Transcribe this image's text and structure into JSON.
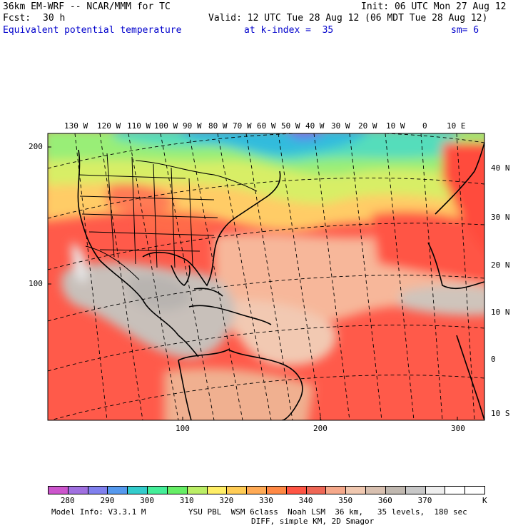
{
  "header": {
    "title": "36km EM-WRF -- NCAR/MMM for TC",
    "init": "Init: 06 UTC Mon 27 Aug 12",
    "fcst_label": "Fcst:",
    "fcst_value": "30 h",
    "valid": "Valid: 12 UTC Tue 28 Aug 12 (06 MDT Tue 28 Aug 12)",
    "field": "Equivalent potential temperature",
    "level": "at k-index =  35",
    "smooth": "sm= 6"
  },
  "map": {
    "lon_labels": [
      "130 W",
      "120 W",
      "110 W",
      "100 W",
      "90 W",
      "80 W",
      "70 W",
      "60 W",
      "50 W",
      "40 W",
      "30 W",
      "20 W",
      "10 W",
      "0",
      "10 E"
    ],
    "lat_labels": [
      "40 N",
      "30 N",
      "20 N",
      "10 N",
      "0",
      "10 S"
    ],
    "grid_y_labels": [
      "200",
      "100"
    ],
    "grid_x_labels": [
      "100",
      "200",
      "300"
    ]
  },
  "colorbar": {
    "colors": [
      "#cc55cc",
      "#a070e0",
      "#8080ee",
      "#5599ee",
      "#33cccc",
      "#44ee99",
      "#66ee66",
      "#bbee66",
      "#ffee66",
      "#ffcc55",
      "#ffaa55",
      "#ff8844",
      "#ff5544",
      "#ee6655",
      "#f5a88a",
      "#f0c8b0",
      "#d8c0b0",
      "#c0b8b0",
      "#c8c8c8",
      "#eeeeee",
      "#ffffff",
      "#ffffff"
    ],
    "labels": [
      "280",
      "290",
      "300",
      "310",
      "320",
      "330",
      "340",
      "350",
      "360",
      "370"
    ],
    "unit": "K"
  },
  "footer": {
    "model_info": "Model Info: V3.3.1 M",
    "physics": "YSU PBL  WSM 6class  Noah LSM  36 km,   35 levels,  180 sec",
    "diff": "DIFF, simple KM, 2D Smagor"
  }
}
